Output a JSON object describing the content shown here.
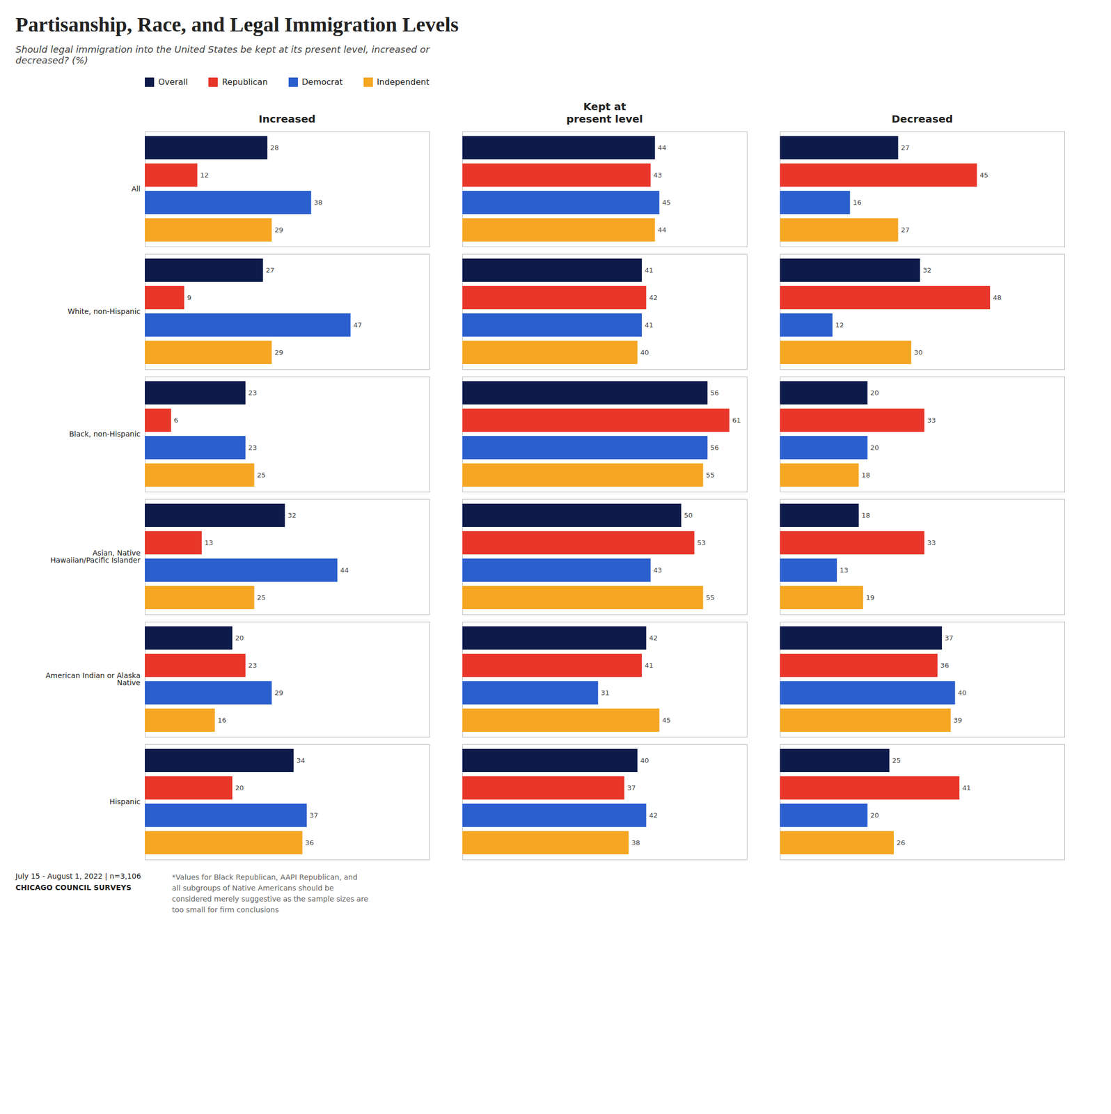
{
  "title": "Partisanship, Race, and Legal Immigration Levels",
  "subtitle": "Should legal immigration into the United States be kept at its present level, increased or\ndecreased? (%)",
  "annotations": [
    "July 15 - August 1, 2022 | n=3,106",
    "CHICAGO COUNCIL SURVEYS",
    "*Values for Black Republican, AAPI Republican, and\nall subgroups of Native Americans should be\nconsidered merely suggestive as the sample sizes are\ntoo small for firm conclusions"
  ],
  "chart_data": [
    {
      "type": "bar",
      "title": "Increased",
      "orientation": "horizontal",
      "categories": [
        "All",
        "White, non-Hispanic",
        "Black, non-Hispanic",
        "Asian, Native\nHawaiian/Pacific Islander",
        "American Indian or Alaska\nNative",
        "Hispanic"
      ],
      "series": [
        {
          "name": "Overall",
          "color": "#0d1b4b",
          "values": [
            28,
            27,
            23,
            32,
            20,
            34
          ]
        },
        {
          "name": "Republican",
          "color": "#e8372a",
          "values": [
            12,
            9,
            6,
            13,
            23,
            20
          ]
        },
        {
          "name": "Democrat",
          "color": "#2b5fce",
          "values": [
            38,
            47,
            23,
            44,
            29,
            37
          ]
        },
        {
          "name": "Independent",
          "color": "#f5a623",
          "values": [
            29,
            29,
            25,
            25,
            16,
            36
          ]
        }
      ],
      "xlim": [
        0,
        65
      ],
      "data_labels": true,
      "tick_labels": "y",
      "legend": "top"
    },
    {
      "type": "bar",
      "title": "Kept at\npresent level",
      "orientation": "horizontal",
      "categories": [
        "All",
        "White, non-Hispanic",
        "Black, non-Hispanic",
        "Asian, Native\nHawaiian/Pacific Islander",
        "American Indian or Alaska\nNative",
        "Hispanic"
      ],
      "series": [
        {
          "name": "Overall",
          "color": "#0d1b4b",
          "values": [
            44,
            41,
            56,
            50,
            42,
            40
          ]
        },
        {
          "name": "Republican",
          "color": "#e8372a",
          "values": [
            43,
            42,
            61,
            53,
            41,
            37
          ]
        },
        {
          "name": "Democrat",
          "color": "#2b5fce",
          "values": [
            45,
            41,
            56,
            43,
            31,
            42
          ]
        },
        {
          "name": "Independent",
          "color": "#f5a623",
          "values": [
            44,
            40,
            55,
            55,
            45,
            38
          ]
        }
      ],
      "xlim": [
        0,
        65
      ],
      "data_labels": true,
      "tick_labels": false
    },
    {
      "type": "bar",
      "title": "Decreased",
      "orientation": "horizontal",
      "categories": [
        "All",
        "White, non-Hispanic",
        "Black, non-Hispanic",
        "Asian, Native\nHawaiian/Pacific Islander",
        "American Indian or Alaska\nNative",
        "Hispanic"
      ],
      "series": [
        {
          "name": "Overall",
          "color": "#0d1b4b",
          "values": [
            27,
            32,
            20,
            18,
            37,
            25
          ]
        },
        {
          "name": "Republican",
          "color": "#e8372a",
          "values": [
            45,
            48,
            33,
            33,
            36,
            41
          ]
        },
        {
          "name": "Democrat",
          "color": "#2b5fce",
          "values": [
            16,
            12,
            20,
            13,
            40,
            20
          ]
        },
        {
          "name": "Independent",
          "color": "#f5a623",
          "values": [
            27,
            30,
            18,
            19,
            39,
            26
          ]
        }
      ],
      "xlim": [
        0,
        65
      ],
      "data_labels": true,
      "tick_labels": false
    }
  ]
}
